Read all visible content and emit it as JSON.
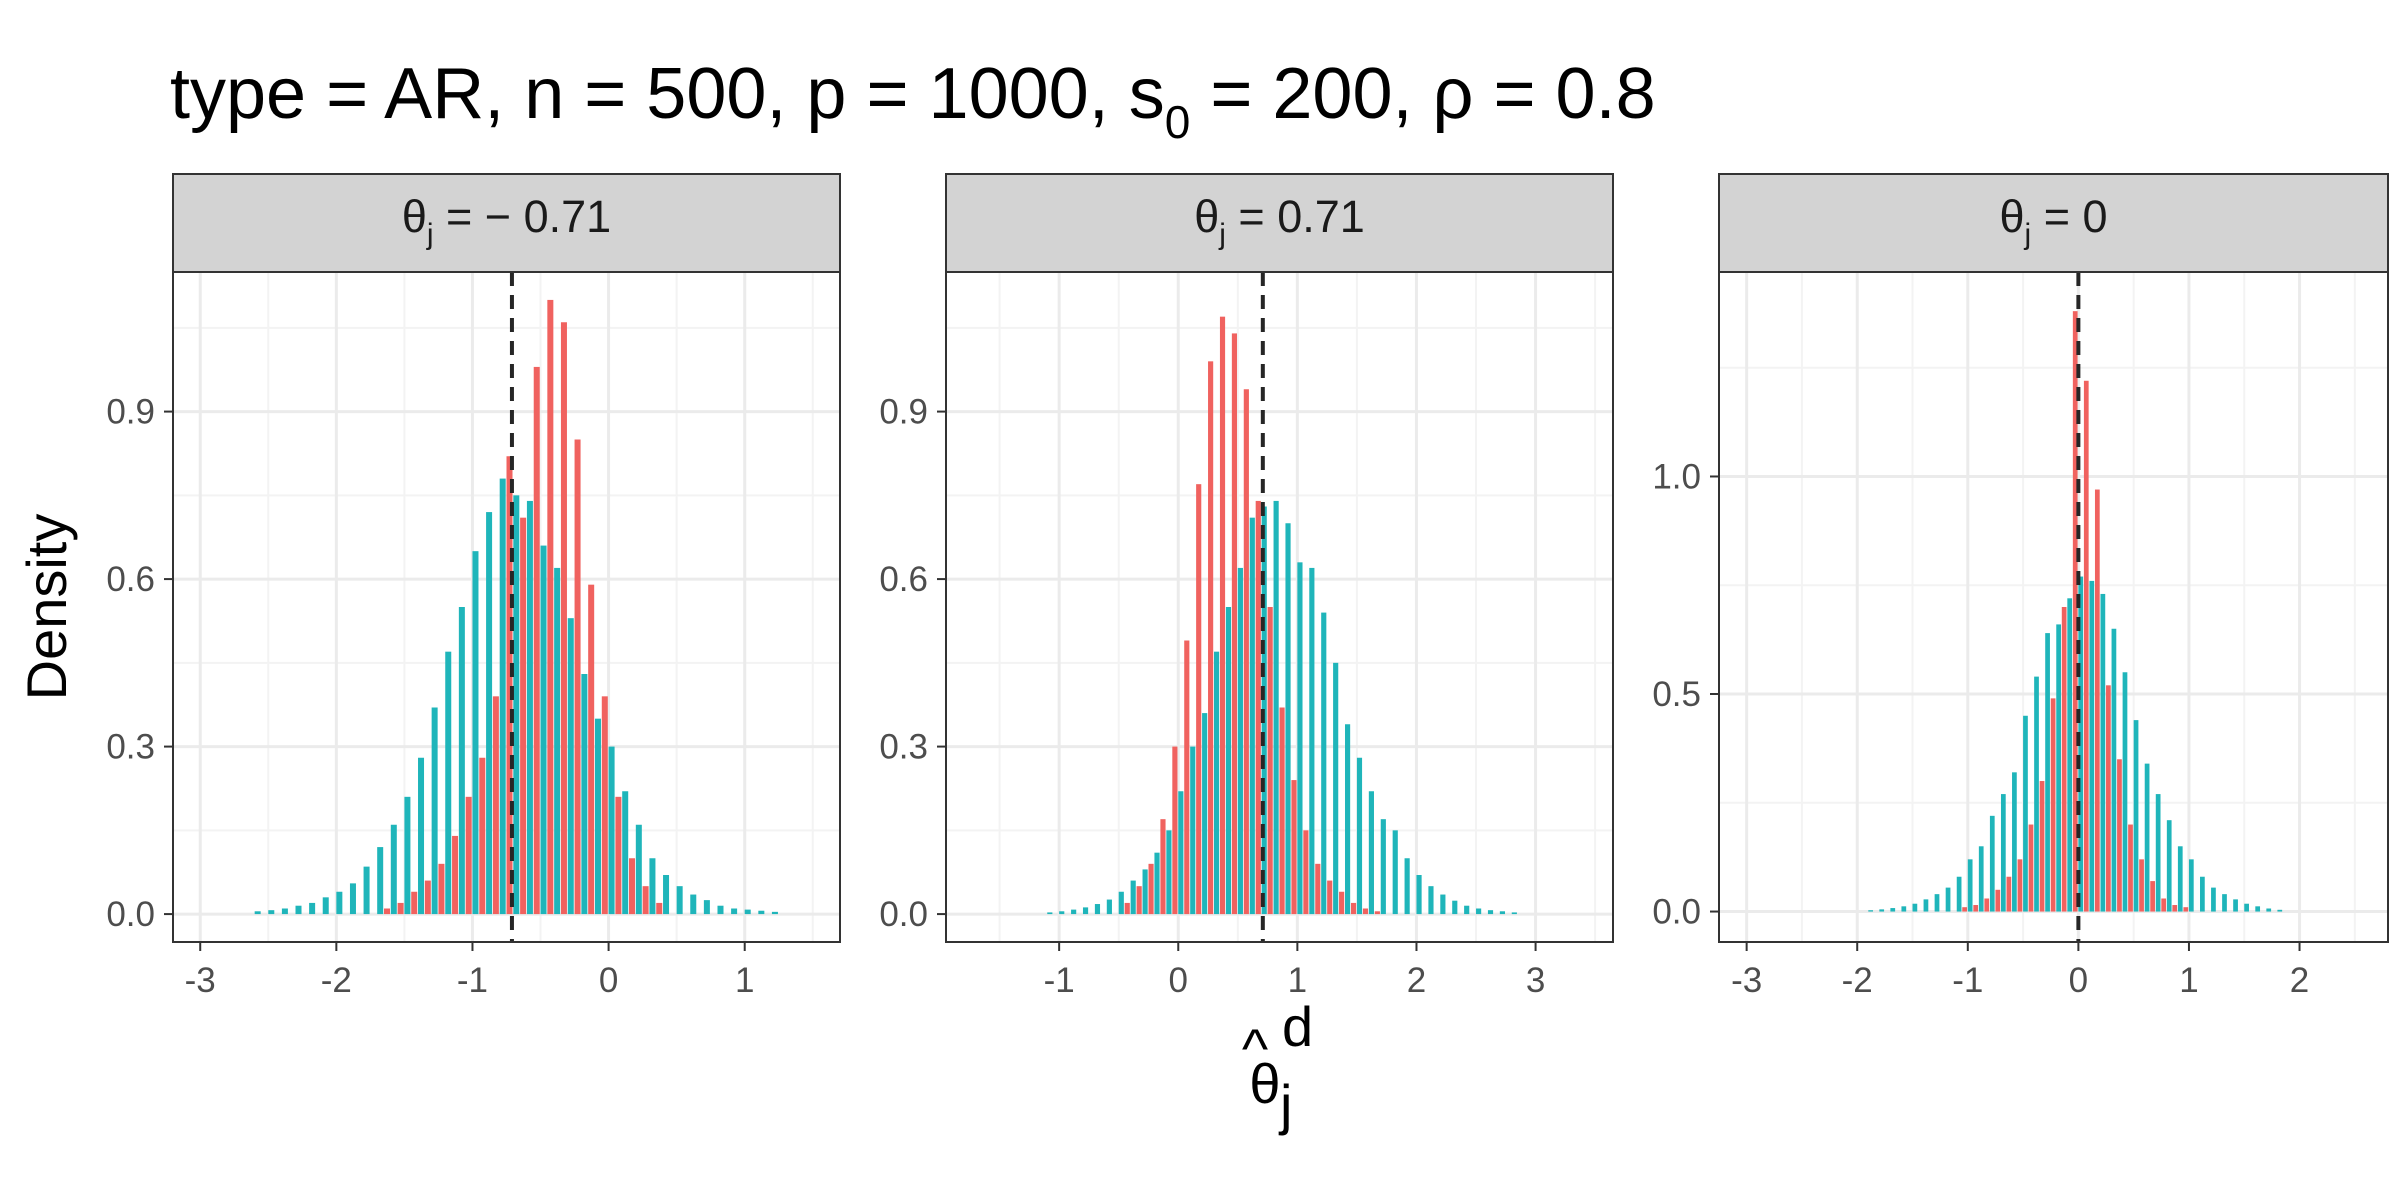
{
  "title": {
    "prefix": "type = AR, n = 500, p = 1000, s",
    "sub": "0",
    "mid": " = 200, ",
    "rho": "ρ",
    "suffix": " = 0.8"
  },
  "axes": {
    "ylabel": "Density",
    "xlabel": {
      "base": "θ",
      "hat": "^",
      "sup": "d",
      "sub": "j"
    }
  },
  "colors": {
    "series_red": "#F0625F",
    "series_teal": "#1FB5BA",
    "reference_line": "#262626",
    "strip_fill": "#D3D3D3",
    "grid_major": "#EBEBEB",
    "grid_minor": "#F3F3F3",
    "panel_border": "#333333"
  },
  "chart_data": [
    {
      "type": "bar",
      "strip": {
        "base": "θ",
        "sub": "j",
        "rest": " = − 0.71"
      },
      "reference_x": -0.71,
      "reference_style": "dashed",
      "xlim": [
        -3.2,
        1.7
      ],
      "ylim": [
        -0.05,
        1.15
      ],
      "x_ticks": [
        -3,
        -2,
        -1,
        0,
        1
      ],
      "x_tick_labels": [
        "-3",
        "-2",
        "-1",
        "0",
        "1"
      ],
      "y_ticks": [
        0,
        0.3,
        0.6,
        0.9
      ],
      "y_tick_labels": [
        "0.0",
        "0.3",
        "0.6",
        "0.9"
      ],
      "bin_width": 0.1,
      "series": [
        {
          "color_key": "series_red",
          "x": [
            -1.6,
            -1.5,
            -1.4,
            -1.3,
            -1.2,
            -1.1,
            -1.0,
            -0.9,
            -0.8,
            -0.7,
            -0.6,
            -0.5,
            -0.4,
            -0.3,
            -0.2,
            -0.1,
            0.0,
            0.1,
            0.2,
            0.3,
            0.4
          ],
          "values": [
            0.01,
            0.02,
            0.04,
            0.06,
            0.09,
            0.14,
            0.21,
            0.28,
            0.39,
            0.82,
            0.71,
            0.98,
            1.1,
            1.06,
            0.85,
            0.59,
            0.39,
            0.21,
            0.1,
            0.05,
            0.02
          ]
        },
        {
          "color_key": "series_teal",
          "x": [
            -2.6,
            -2.5,
            -2.4,
            -2.3,
            -2.2,
            -2.1,
            -2.0,
            -1.9,
            -1.8,
            -1.7,
            -1.6,
            -1.5,
            -1.4,
            -1.3,
            -1.2,
            -1.1,
            -1.0,
            -0.9,
            -0.8,
            -0.7,
            -0.6,
            -0.5,
            -0.4,
            -0.3,
            -0.2,
            -0.1,
            0.0,
            0.1,
            0.2,
            0.3,
            0.4,
            0.5,
            0.6,
            0.7,
            0.8,
            0.9,
            1.0,
            1.1,
            1.2
          ],
          "values": [
            0.005,
            0.007,
            0.01,
            0.015,
            0.02,
            0.03,
            0.04,
            0.055,
            0.085,
            0.12,
            0.16,
            0.21,
            0.28,
            0.37,
            0.47,
            0.55,
            0.65,
            0.72,
            0.78,
            0.75,
            0.74,
            0.66,
            0.62,
            0.53,
            0.43,
            0.35,
            0.3,
            0.22,
            0.16,
            0.1,
            0.07,
            0.05,
            0.035,
            0.025,
            0.015,
            0.01,
            0.008,
            0.006,
            0.004
          ]
        }
      ]
    },
    {
      "type": "bar",
      "strip": {
        "base": "θ",
        "sub": "j",
        "rest": " = 0.71"
      },
      "reference_x": 0.71,
      "reference_style": "dashed",
      "xlim": [
        -1.95,
        3.65
      ],
      "ylim": [
        -0.05,
        1.15
      ],
      "x_ticks": [
        -1,
        0,
        1,
        2,
        3
      ],
      "x_tick_labels": [
        "-1",
        "0",
        "1",
        "2",
        "3"
      ],
      "y_ticks": [
        0,
        0.3,
        0.6,
        0.9
      ],
      "y_tick_labels": [
        "0.0",
        "0.3",
        "0.6",
        "0.9"
      ],
      "bin_width": 0.1,
      "series": [
        {
          "color_key": "series_red",
          "x": [
            -0.4,
            -0.3,
            -0.2,
            -0.1,
            0.0,
            0.1,
            0.2,
            0.3,
            0.4,
            0.5,
            0.6,
            0.7,
            0.8,
            0.9,
            1.0,
            1.1,
            1.2,
            1.3,
            1.4,
            1.5,
            1.6,
            1.7
          ],
          "values": [
            0.02,
            0.05,
            0.09,
            0.17,
            0.3,
            0.49,
            0.77,
            0.99,
            1.07,
            1.04,
            0.94,
            0.74,
            0.55,
            0.37,
            0.24,
            0.15,
            0.09,
            0.06,
            0.04,
            0.02,
            0.01,
            0.005
          ]
        },
        {
          "color_key": "series_teal",
          "x": [
            -1.1,
            -1.0,
            -0.9,
            -0.8,
            -0.7,
            -0.6,
            -0.5,
            -0.4,
            -0.3,
            -0.2,
            -0.1,
            0.0,
            0.1,
            0.2,
            0.3,
            0.4,
            0.5,
            0.6,
            0.7,
            0.8,
            0.9,
            1.0,
            1.1,
            1.2,
            1.3,
            1.4,
            1.5,
            1.6,
            1.7,
            1.8,
            1.9,
            2.0,
            2.1,
            2.2,
            2.3,
            2.4,
            2.5,
            2.6,
            2.7,
            2.8
          ],
          "values": [
            0.003,
            0.005,
            0.008,
            0.012,
            0.018,
            0.026,
            0.04,
            0.06,
            0.08,
            0.11,
            0.15,
            0.22,
            0.3,
            0.36,
            0.47,
            0.55,
            0.62,
            0.71,
            0.73,
            0.74,
            0.7,
            0.63,
            0.62,
            0.54,
            0.45,
            0.34,
            0.28,
            0.22,
            0.17,
            0.15,
            0.1,
            0.07,
            0.05,
            0.035,
            0.024,
            0.015,
            0.01,
            0.007,
            0.005,
            0.003
          ]
        }
      ]
    },
    {
      "type": "bar",
      "strip": {
        "base": "θ",
        "sub": "j",
        "rest": " = 0"
      },
      "reference_x": 0,
      "reference_style": "dashed",
      "xlim": [
        -3.25,
        2.8
      ],
      "ylim": [
        -0.07,
        1.47
      ],
      "x_ticks": [
        -3,
        -2,
        -1,
        0,
        1,
        2
      ],
      "x_tick_labels": [
        "-3",
        "-2",
        "-1",
        "0",
        "1",
        "2"
      ],
      "y_ticks": [
        0,
        0.5,
        1.0
      ],
      "y_tick_labels": [
        "0.0",
        "0.5",
        "1.0"
      ],
      "bin_width": 0.1,
      "series": [
        {
          "color_key": "series_red",
          "x": [
            -1.0,
            -0.9,
            -0.8,
            -0.7,
            -0.6,
            -0.5,
            -0.4,
            -0.3,
            -0.2,
            -0.1,
            0.0,
            0.1,
            0.2,
            0.3,
            0.4,
            0.5,
            0.6,
            0.7,
            0.8,
            0.9,
            1.0
          ],
          "values": [
            0.01,
            0.015,
            0.03,
            0.05,
            0.08,
            0.12,
            0.2,
            0.3,
            0.49,
            0.7,
            1.38,
            1.22,
            0.97,
            0.52,
            0.35,
            0.2,
            0.12,
            0.07,
            0.03,
            0.015,
            0.01
          ]
        },
        {
          "color_key": "series_teal",
          "x": [
            -1.9,
            -1.8,
            -1.7,
            -1.6,
            -1.5,
            -1.4,
            -1.3,
            -1.2,
            -1.1,
            -1.0,
            -0.9,
            -0.8,
            -0.7,
            -0.6,
            -0.5,
            -0.4,
            -0.3,
            -0.2,
            -0.1,
            0.0,
            0.1,
            0.2,
            0.3,
            0.4,
            0.5,
            0.6,
            0.7,
            0.8,
            0.9,
            1.0,
            1.1,
            1.2,
            1.3,
            1.4,
            1.5,
            1.6,
            1.7,
            1.8
          ],
          "values": [
            0.003,
            0.005,
            0.008,
            0.012,
            0.018,
            0.028,
            0.04,
            0.055,
            0.08,
            0.12,
            0.15,
            0.22,
            0.27,
            0.32,
            0.45,
            0.54,
            0.64,
            0.66,
            0.72,
            0.77,
            0.76,
            0.73,
            0.65,
            0.55,
            0.44,
            0.34,
            0.27,
            0.21,
            0.15,
            0.12,
            0.08,
            0.055,
            0.04,
            0.028,
            0.018,
            0.012,
            0.007,
            0.004
          ]
        }
      ]
    }
  ]
}
